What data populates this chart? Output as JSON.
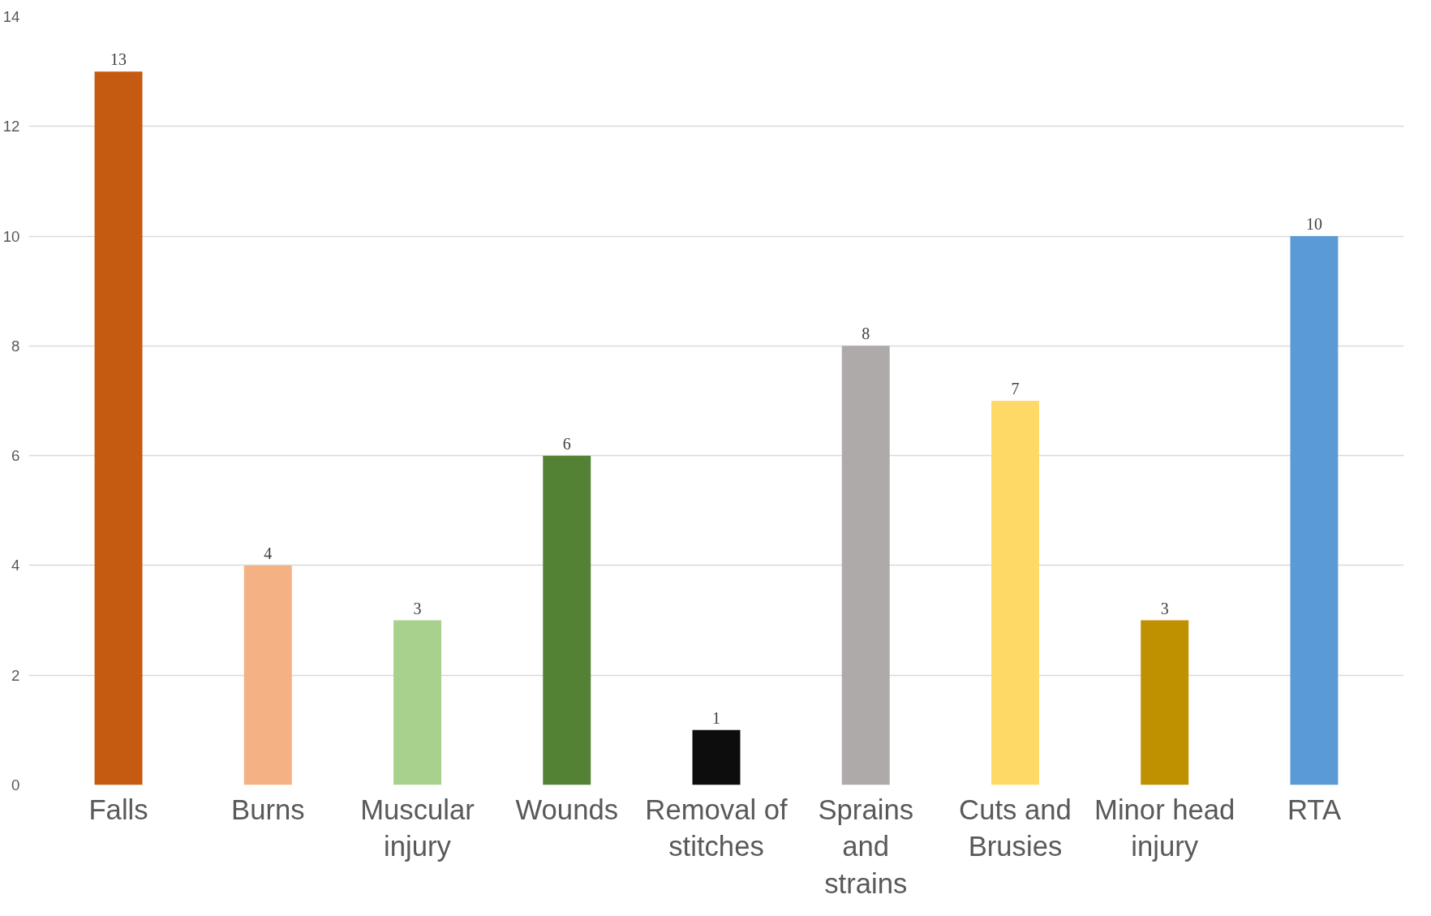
{
  "chart_data": {
    "type": "bar",
    "categories": [
      "Falls",
      "Burns",
      "Muscular injury",
      "Wounds",
      "Removal of stitches",
      "Sprains and strains",
      "Cuts and Brusies",
      "Minor head injury",
      "RTA"
    ],
    "values": [
      13,
      4,
      3,
      6,
      1,
      8,
      7,
      3,
      10
    ],
    "colors": [
      "#c55a11",
      "#f4b183",
      "#a9d18e",
      "#548235",
      "#0d0d0d",
      "#aeaaaa",
      "#ffd966",
      "#bf9000",
      "#5b9bd5"
    ],
    "ylim": [
      0,
      14
    ],
    "yticks": [
      0,
      2,
      4,
      6,
      8,
      10,
      12,
      14
    ],
    "grid": "y",
    "data_labels": true
  }
}
